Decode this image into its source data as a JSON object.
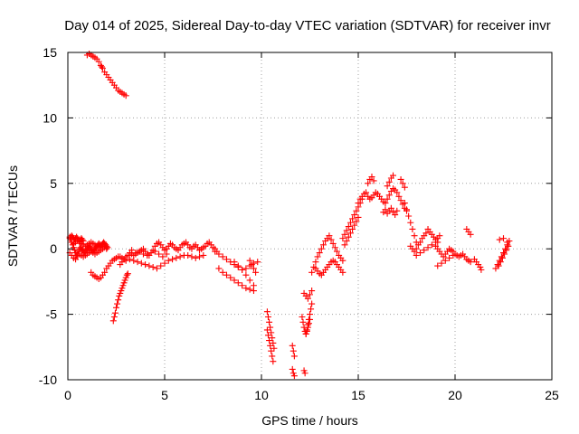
{
  "chart_data": {
    "type": "scatter",
    "title": "Day 014 of 2025, Sidereal Day-to-day VTEC variation (SDTVAR) for receiver invr",
    "xlabel": "GPS time / hours",
    "ylabel": "SDTVAR / TECUs",
    "xlim": [
      0,
      25
    ],
    "ylim": [
      -10,
      15
    ],
    "xticks": [
      0,
      5,
      10,
      15,
      20,
      25
    ],
    "yticks": [
      -10,
      -5,
      0,
      5,
      10,
      15
    ],
    "xtick_labels": [
      "0",
      "5",
      "10",
      "15",
      "20",
      "25"
    ],
    "ytick_labels": [
      "-10",
      "-5",
      "0",
      "5",
      "10",
      "15"
    ],
    "grid": true,
    "marker": "plus",
    "color": "#ff0000",
    "series": [
      {
        "name": "SDTVAR",
        "x": [
          0.1,
          0.15,
          0.2,
          0.25,
          0.3,
          0.35,
          0.4,
          0.45,
          0.5,
          0.55,
          0.6,
          0.65,
          0.7,
          0.75,
          0.8,
          0.85,
          0.9,
          0.95,
          1.0,
          1.05,
          1.1,
          1.15,
          1.2,
          1.25,
          1.3,
          1.35,
          1.4,
          1.45,
          1.5,
          1.55,
          1.6,
          1.65,
          1.7,
          1.75,
          1.8,
          1.85,
          1.9,
          1.95,
          2.0,
          2.05,
          0.1,
          0.2,
          0.3,
          0.4,
          0.5,
          0.6,
          0.7,
          0.8,
          0.9,
          1.0,
          1.1,
          1.2,
          1.3,
          1.4,
          1.5,
          1.6,
          1.7,
          1.8,
          1.9,
          2.0,
          0.3,
          0.4,
          0.5,
          0.6,
          0.7,
          0.8,
          0.9,
          1.0,
          1.1,
          1.2,
          1.3,
          1.4,
          1.5,
          1.6,
          1.7,
          1.8,
          1.9,
          2.0,
          0.1,
          0.15,
          0.2,
          0.25,
          0.3,
          0.35,
          0.4,
          0.45,
          0.5,
          0.55,
          0.6,
          0.65,
          0.7,
          0.75,
          0.8,
          1.0,
          1.1,
          1.2,
          1.3,
          1.4,
          1.5,
          1.6,
          1.7,
          1.75,
          1.8,
          1.9,
          2.0,
          2.1,
          2.2,
          2.3,
          2.4,
          2.5,
          2.6,
          2.7,
          2.8,
          2.9,
          3.0,
          1.2,
          1.3,
          1.4,
          1.5,
          1.6,
          1.7,
          1.8,
          1.9,
          2.0,
          2.1,
          2.2,
          2.3,
          2.4,
          2.5,
          2.6,
          2.7,
          2.8,
          2.9,
          3.0,
          2.35,
          2.4,
          2.45,
          2.5,
          2.55,
          2.6,
          2.65,
          2.7,
          2.75,
          2.8,
          2.85,
          2.9,
          2.95,
          3.0,
          3.05,
          3.1,
          2.7,
          2.8,
          2.9,
          3.0,
          3.1,
          3.2,
          3.3,
          3.4,
          3.5,
          3.6,
          3.7,
          3.8,
          3.9,
          4.0,
          4.1,
          4.2,
          4.3,
          4.4,
          4.5,
          4.6,
          4.7,
          4.8,
          4.9,
          5.0,
          5.1,
          5.2,
          5.3,
          5.4,
          5.5,
          5.6,
          5.7,
          5.8,
          5.9,
          6.0,
          6.1,
          6.2,
          6.3,
          6.4,
          6.5,
          6.6,
          6.7,
          6.8,
          6.9,
          7.0,
          7.1,
          7.2,
          7.3,
          7.4,
          7.5,
          7.6,
          7.7,
          3.2,
          3.4,
          3.6,
          3.8,
          4.0,
          4.2,
          4.4,
          4.6,
          4.8,
          5.0,
          5.2,
          5.4,
          5.6,
          5.8,
          6.0,
          6.2,
          6.4,
          6.6,
          6.8,
          7.0,
          3.3,
          3.5,
          3.7,
          3.9,
          4.1,
          4.3,
          4.5,
          4.7,
          4.9,
          5.1,
          7.6,
          7.8,
          8.0,
          8.2,
          8.4,
          8.6,
          8.8,
          9.0,
          9.2,
          9.4,
          9.6,
          9.8,
          7.8,
          8.0,
          8.2,
          8.4,
          8.6,
          8.8,
          9.0,
          9.2,
          9.4,
          9.6,
          8.6,
          8.8,
          9.0,
          9.2,
          9.4,
          9.6,
          9.4,
          9.5,
          9.6,
          9.7,
          10.3,
          10.35,
          10.4,
          10.45,
          10.5,
          10.55,
          10.6,
          10.65,
          10.3,
          10.35,
          10.4,
          10.45,
          10.5,
          10.55,
          10.6,
          11.6,
          11.65,
          11.7,
          11.6,
          11.65,
          11.7,
          12.2,
          12.25,
          12.1,
          12.15,
          12.2,
          12.25,
          12.3,
          12.35,
          12.4,
          12.45,
          12.5,
          12.55,
          12.6,
          12.2,
          12.3,
          12.4,
          12.5,
          12.6,
          12.3,
          12.35,
          12.4,
          12.45,
          12.5,
          12.6,
          12.7,
          12.8,
          12.9,
          13.0,
          13.1,
          13.2,
          13.3,
          13.4,
          13.5,
          13.6,
          13.7,
          13.8,
          13.9,
          14.0,
          14.1,
          14.2,
          12.8,
          12.9,
          13.0,
          13.1,
          13.2,
          13.3,
          13.4,
          13.5,
          13.6,
          13.7,
          13.8,
          13.9,
          14.0,
          14.1,
          14.2,
          14.2,
          14.3,
          14.4,
          14.5,
          14.6,
          14.7,
          14.8,
          14.9,
          15.0,
          15.1,
          15.2,
          14.3,
          14.4,
          14.5,
          14.6,
          14.7,
          14.8,
          14.9,
          15.0,
          15.0,
          15.1,
          15.2,
          15.3,
          15.4,
          15.5,
          15.6,
          15.7,
          15.8,
          15.9,
          16.0,
          16.1,
          16.2,
          16.3,
          16.4,
          16.5,
          16.6,
          16.7,
          16.8,
          16.9,
          17.0,
          17.1,
          17.2,
          17.3,
          17.4,
          17.5,
          15.5,
          15.6,
          15.7,
          15.8,
          16.5,
          16.6,
          16.7,
          16.8,
          17.2,
          17.3,
          17.4,
          16.3,
          16.4,
          16.5,
          16.6,
          16.7,
          16.8,
          16.9,
          17.0,
          17.4,
          17.5,
          17.6,
          17.7,
          17.8,
          17.9,
          18.0,
          17.7,
          17.8,
          17.9,
          18.0,
          18.1,
          18.2,
          18.3,
          18.4,
          18.5,
          18.6,
          18.7,
          18.8,
          18.9,
          19.0,
          19.1,
          18.0,
          18.2,
          18.4,
          18.6,
          18.8,
          19.0,
          19.0,
          19.1,
          19.2,
          19.3,
          19.4,
          19.5,
          19.6,
          19.7,
          19.8,
          19.9,
          20.0,
          20.1,
          20.2,
          20.3,
          20.4,
          20.5,
          20.6,
          20.7,
          20.8,
          19.1,
          19.3,
          19.5,
          19.7,
          19.9,
          19.1,
          19.2,
          20.6,
          20.7,
          20.8,
          21.0,
          21.1,
          21.2,
          21.3,
          21.35,
          22.1,
          22.2,
          22.3,
          22.4,
          22.5,
          22.6,
          22.7,
          22.8,
          22.25,
          22.35,
          22.45,
          22.55,
          22.65,
          22.75,
          22.3,
          22.5,
          22.7
        ],
        "y": [
          0.9,
          0.7,
          0.5,
          0.3,
          0.1,
          -0.1,
          -0.3,
          -0.5,
          -0.4,
          -0.2,
          0.0,
          0.1,
          0.0,
          -0.1,
          -0.2,
          -0.3,
          -0.2,
          -0.1,
          0.0,
          0.1,
          0.2,
          0.1,
          0.0,
          -0.1,
          -0.2,
          -0.1,
          0.0,
          0.1,
          0.2,
          0.3,
          0.4,
          0.3,
          0.2,
          0.3,
          0.4,
          0.5,
          0.4,
          0.3,
          0.2,
          0.1,
          -0.3,
          -0.5,
          -0.7,
          -0.8,
          -0.6,
          -0.4,
          -0.5,
          -0.6,
          -0.5,
          -0.4,
          -0.3,
          -0.2,
          -0.3,
          -0.4,
          -0.3,
          -0.2,
          -0.1,
          0.0,
          0.1,
          0.0,
          0.4,
          0.5,
          0.6,
          0.5,
          0.4,
          0.3,
          0.2,
          0.3,
          0.4,
          0.5,
          0.4,
          0.3,
          0.2,
          0.1,
          0.2,
          0.3,
          0.2,
          0.1,
          0.8,
          0.9,
          1.0,
          0.9,
          0.8,
          0.7,
          0.8,
          0.9,
          0.8,
          0.7,
          0.6,
          0.7,
          0.8,
          0.7,
          0.6,
          14.8,
          14.9,
          14.8,
          14.7,
          14.6,
          14.5,
          14.3,
          14.0,
          13.9,
          13.8,
          13.5,
          13.3,
          13.1,
          12.9,
          12.7,
          12.5,
          12.3,
          12.1,
          12.0,
          11.9,
          11.8,
          11.7,
          -1.8,
          -2.0,
          -2.1,
          -2.2,
          -2.3,
          -2.2,
          -2.0,
          -1.8,
          -1.5,
          -1.3,
          -1.1,
          -0.9,
          -0.8,
          -0.7,
          -0.6,
          -0.6,
          -0.7,
          -0.8,
          -0.9,
          -5.5,
          -5.2,
          -4.9,
          -4.5,
          -4.2,
          -3.9,
          -3.6,
          -3.4,
          -3.2,
          -3.0,
          -2.8,
          -2.6,
          -2.4,
          -2.2,
          -2.0,
          -1.9,
          -1.2,
          -1.0,
          -0.8,
          -0.6,
          -0.5,
          -0.3,
          -0.4,
          -0.5,
          -0.4,
          -0.3,
          -0.2,
          -0.1,
          0.0,
          -0.2,
          -0.4,
          -0.5,
          -0.3,
          -0.1,
          0.2,
          0.4,
          0.5,
          0.3,
          0.1,
          -0.1,
          0.0,
          0.2,
          0.4,
          0.3,
          0.1,
          0.0,
          -0.1,
          0.1,
          0.3,
          0.4,
          0.5,
          0.3,
          0.1,
          0.0,
          0.2,
          0.3,
          0.1,
          -0.1,
          0.0,
          0.1,
          0.2,
          0.4,
          0.5,
          0.3,
          0.1,
          0.0,
          -0.2,
          -0.8,
          -0.9,
          -1.0,
          -1.1,
          -1.2,
          -1.3,
          -1.4,
          -1.5,
          -1.3,
          -1.1,
          -0.9,
          -0.8,
          -0.7,
          -0.6,
          -0.5,
          -0.5,
          -0.6,
          -0.7,
          -0.6,
          -0.5,
          -0.1,
          -0.3,
          -0.2,
          -0.4,
          -0.5,
          -0.3,
          -0.2,
          -0.4,
          -0.6,
          -0.4,
          -0.2,
          -0.4,
          -0.6,
          -0.8,
          -1.0,
          -1.2,
          -1.4,
          -1.6,
          -1.5,
          -1.3,
          -1.1,
          -1.0,
          -1.5,
          -1.8,
          -2.0,
          -2.2,
          -2.4,
          -2.6,
          -2.8,
          -3.0,
          -3.1,
          -3.2,
          -1.0,
          -1.3,
          -1.6,
          -2.0,
          -2.4,
          -2.8,
          -0.9,
          -1.2,
          -1.5,
          -1.8,
          -4.8,
          -5.2,
          -5.6,
          -6.0,
          -6.4,
          -6.8,
          -7.2,
          -7.6,
          -6.2,
          -6.6,
          -7.0,
          -7.4,
          -7.8,
          -8.2,
          -8.6,
          -7.4,
          -7.8,
          -8.2,
          -9.2,
          -9.5,
          -9.7,
          -9.3,
          -9.5,
          -5.2,
          -5.6,
          -6.0,
          -6.3,
          -6.5,
          -6.2,
          -5.8,
          -5.4,
          -5.0,
          -4.6,
          -4.2,
          -3.4,
          -3.6,
          -3.8,
          -3.5,
          -3.2,
          -6.5,
          -6.3,
          -6.0,
          -5.7,
          -5.4,
          -1.8,
          -1.4,
          -1.0,
          -0.6,
          -0.3,
          0.0,
          0.3,
          0.6,
          0.8,
          1.0,
          0.7,
          0.4,
          0.1,
          -0.2,
          -0.5,
          -0.7,
          -0.9,
          -1.5,
          -1.7,
          -1.9,
          -2.0,
          -1.8,
          -1.6,
          -1.4,
          -1.2,
          -1.0,
          -0.9,
          -1.0,
          -1.2,
          -1.4,
          -1.6,
          -1.8,
          0.8,
          1.1,
          1.4,
          1.7,
          2.0,
          2.3,
          2.6,
          2.9,
          3.2,
          3.5,
          3.8,
          0.3,
          0.6,
          0.9,
          1.2,
          1.5,
          1.8,
          2.1,
          2.4,
          3.5,
          3.8,
          4.0,
          4.2,
          4.3,
          4.0,
          3.8,
          3.9,
          4.1,
          4.3,
          4.2,
          4.0,
          3.8,
          3.6,
          3.5,
          3.8,
          4.1,
          4.4,
          4.6,
          4.5,
          4.3,
          4.0,
          3.7,
          3.4,
          3.1,
          2.9,
          5.0,
          5.3,
          5.5,
          5.2,
          4.8,
          5.1,
          5.4,
          5.6,
          5.3,
          5.0,
          4.7,
          2.8,
          3.0,
          2.7,
          2.9,
          3.1,
          2.8,
          2.6,
          2.9,
          3.5,
          3.0,
          2.5,
          2.0,
          1.5,
          1.0,
          0.5,
          0.2,
          0.0,
          -0.2,
          0.0,
          0.3,
          0.5,
          0.8,
          1.0,
          1.2,
          1.5,
          1.3,
          1.1,
          0.9,
          0.7,
          0.5,
          -0.5,
          -0.3,
          -0.1,
          0.1,
          0.3,
          0.5,
          0.2,
          0.0,
          -0.2,
          -0.4,
          -0.6,
          -0.4,
          -0.2,
          0.0,
          -0.1,
          -0.2,
          -0.4,
          -0.5,
          -0.6,
          -0.5,
          -0.4,
          -0.6,
          -0.8,
          -0.9,
          -1.0,
          -1.3,
          -1.1,
          -0.9,
          -0.7,
          -0.5,
          0.8,
          1.0,
          1.5,
          1.3,
          1.1,
          -0.8,
          -1.0,
          -1.2,
          -1.4,
          -1.6,
          -1.5,
          -1.2,
          -0.9,
          -0.6,
          -0.3,
          0.0,
          0.3,
          0.6,
          -1.3,
          -1.0,
          -0.7,
          -0.4,
          -0.1,
          0.2,
          0.7,
          0.8,
          0.5
        ]
      }
    ]
  }
}
